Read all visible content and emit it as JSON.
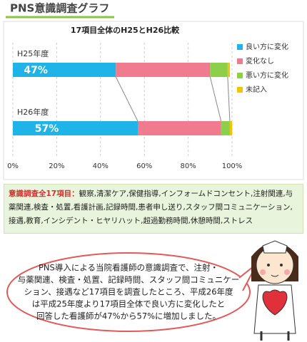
{
  "page_title": "PNS意識調査グラフ",
  "chart_data": {
    "type": "bar",
    "orientation": "horizontal",
    "stacked": true,
    "title": "17項目全体のH25とH26比較",
    "categories": [
      "H25年度",
      "H26年度"
    ],
    "series": [
      {
        "name": "良い方に変化",
        "color": "#1fb4e8",
        "values": [
          47,
          57
        ],
        "value_labels": [
          "47%",
          "57%"
        ]
      },
      {
        "name": "変化なし",
        "color": "#f07a8e",
        "values": [
          43,
          38
        ]
      },
      {
        "name": "悪い方に変化",
        "color": "#8ccf4a",
        "values": [
          8,
          4
        ]
      },
      {
        "name": "未記入",
        "color": "#f5c400",
        "values": [
          1,
          1
        ]
      }
    ],
    "xlim": [
      0,
      100
    ],
    "xticks": [
      {
        "value": 0,
        "label": "0%"
      },
      {
        "value": 20,
        "label": "20%"
      },
      {
        "value": 40,
        "label": "40%"
      },
      {
        "value": 60,
        "label": "60%"
      },
      {
        "value": 80,
        "label": "80%"
      },
      {
        "value": 100,
        "label": "100%"
      }
    ],
    "grid": true,
    "legend": "right"
  },
  "note": {
    "heading": "意識調査全17項目：",
    "body": "観察,清潔ケア,保健指導,インフォームドコンセント,注射関連,与薬関連,検査・処置,看護計画,記録時間,患者申し送り,スタッフ間コミュニケーション,接遇,教育,インシデント・ヒヤリハット,超過勤務時間,休憩時間,ストレス"
  },
  "bubble": {
    "lines": [
      "PNS導入による当院看護師の意識調査で、注射・",
      "与薬関連、検査・処置、記録時間、スタッフ間コミュニケー",
      "ション、接遇など17項目を調査したところ、平成26年度",
      "は平成25年度より17項目全体で良い方に変化したと",
      "回答した看護師が47%から57%に増加しました。"
    ]
  }
}
